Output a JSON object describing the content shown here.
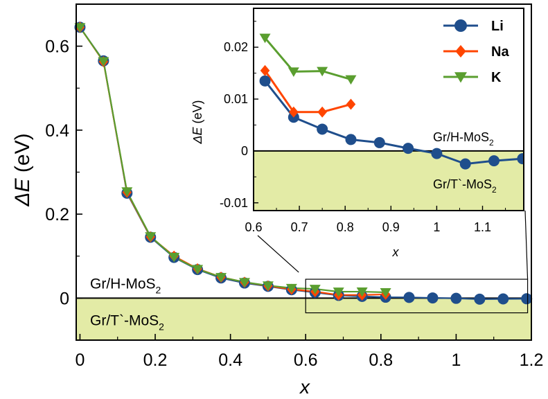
{
  "chart_data": [
    {
      "id": "main",
      "type": "line",
      "xlabel": "x",
      "ylabel": "ΔE (eV)",
      "xlim": [
        -0.01,
        1.2
      ],
      "ylim": [
        -0.1,
        0.7
      ],
      "xticks": [
        0,
        0.2,
        0.4,
        0.6,
        0.8,
        1,
        1.2
      ],
      "xtick_labels": [
        "0",
        "0.2",
        "0.4",
        "0.6",
        "0.8",
        "1",
        "1.2"
      ],
      "yticks": [
        0,
        0.2,
        0.4,
        0.6
      ],
      "ytick_labels": [
        "0",
        "0.2",
        "0.4",
        "0.6"
      ],
      "shade_below_zero": true,
      "zero_line": true,
      "region_labels": {
        "upper": {
          "base": "Gr/H-MoS",
          "sub": "2"
        },
        "lower": {
          "base": "Gr/T`-MoS",
          "sub": "2"
        }
      },
      "zoom_box": {
        "x": [
          0.6,
          1.19
        ],
        "y": [
          -0.035,
          0.045
        ]
      },
      "series": [
        {
          "name": "Li",
          "marker": "circle",
          "color": "#1f4e8c",
          "x": [
            0,
            0.0625,
            0.125,
            0.1875,
            0.25,
            0.3125,
            0.375,
            0.4375,
            0.5,
            0.5625,
            0.625,
            0.6875,
            0.75,
            0.8125,
            0.875,
            0.9375,
            1.0,
            1.0625,
            1.125,
            1.1875
          ],
          "y": [
            0.645,
            0.565,
            0.25,
            0.145,
            0.097,
            0.068,
            0.048,
            0.036,
            0.028,
            0.02,
            0.0135,
            0.0065,
            0.0042,
            0.0022,
            0.0016,
            0.0005,
            -0.0005,
            -0.0025,
            -0.0019,
            -0.0015
          ]
        },
        {
          "name": "Na",
          "marker": "diamond",
          "color": "#ff4500",
          "x": [
            0,
            0.0625,
            0.125,
            0.1875,
            0.25,
            0.3125,
            0.375,
            0.4375,
            0.5,
            0.5625,
            0.625,
            0.6875,
            0.75,
            0.8125
          ],
          "y": [
            0.645,
            0.563,
            0.252,
            0.146,
            0.1,
            0.07,
            0.05,
            0.038,
            0.029,
            0.021,
            0.0155,
            0.0075,
            0.0075,
            0.009
          ]
        },
        {
          "name": "K",
          "marker": "triangle-down",
          "color": "#5a9e2f",
          "x": [
            0,
            0.0625,
            0.125,
            0.1875,
            0.25,
            0.3125,
            0.375,
            0.4375,
            0.5,
            0.5625,
            0.625,
            0.6875,
            0.75,
            0.8125
          ],
          "y": [
            0.645,
            0.564,
            0.254,
            0.147,
            0.098,
            0.069,
            0.05,
            0.038,
            0.03,
            0.024,
            0.0218,
            0.0153,
            0.0154,
            0.0138
          ]
        }
      ]
    },
    {
      "id": "inset",
      "type": "line",
      "xlabel": "x",
      "ylabel": "ΔE (eV)",
      "xlim": [
        0.6,
        1.19
      ],
      "ylim": [
        -0.0115,
        0.0275
      ],
      "xticks": [
        0.6,
        0.7,
        0.8,
        0.9,
        1,
        1.1
      ],
      "xtick_labels": [
        "0.6",
        "0.7",
        "0.8",
        "0.9",
        "1",
        "1.1"
      ],
      "yticks": [
        -0.01,
        0,
        0.01,
        0.02
      ],
      "ytick_labels": [
        "-0.01",
        "0",
        "0.01",
        "0.02"
      ],
      "shade_below_zero": true,
      "zero_line": true,
      "legend": {
        "position": "top-right",
        "entries": [
          "Li",
          "Na",
          "K"
        ]
      },
      "region_labels": {
        "upper": {
          "base": "Gr/H-MoS",
          "sub": "2"
        },
        "lower": {
          "base": "Gr/T`-MoS",
          "sub": "2"
        }
      },
      "series_from": "main"
    }
  ]
}
